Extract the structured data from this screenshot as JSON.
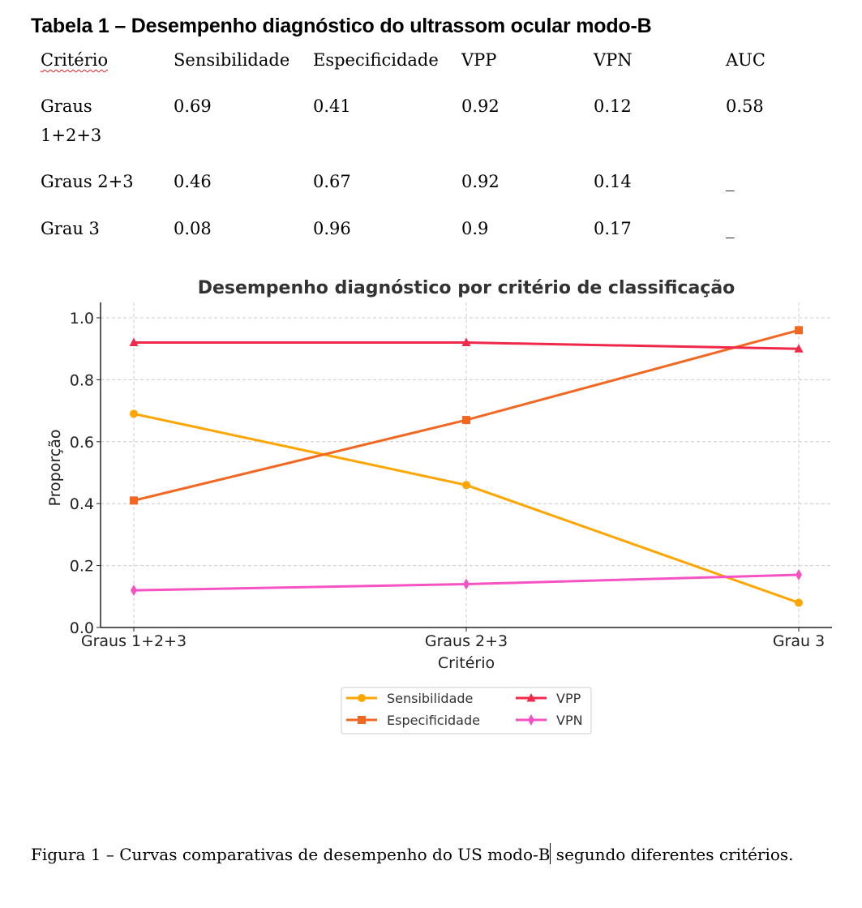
{
  "table": {
    "title": "Tabela 1 – Desempenho diagnóstico do ultrassom ocular modo-B",
    "headers": [
      "Critério",
      "Sensibilidade",
      "Especificidade",
      "VPP",
      "VPN",
      "AUC"
    ],
    "rows": [
      [
        "Graus 1+2+3",
        "0.69",
        "0.41",
        "0.92",
        "0.12",
        "0.58"
      ],
      [
        "Graus 2+3",
        "0.46",
        "0.67",
        "0.92",
        "0.14",
        "_"
      ],
      [
        "Grau 3",
        "0.08",
        "0.96",
        "0.9",
        "0.17",
        "_"
      ]
    ]
  },
  "chart_data": {
    "type": "line",
    "title": "Desempenho diagnóstico por critério de classificação",
    "xlabel": "Critério",
    "ylabel": "Proporção",
    "categories": [
      "Graus 1+2+3",
      "Graus 2+3",
      "Grau 3"
    ],
    "ylim": [
      0,
      1.05
    ],
    "yticks": [
      "0.0",
      "0.2",
      "0.4",
      "0.6",
      "0.8",
      "1.0"
    ],
    "grid": true,
    "legend_position": "bottom-center",
    "series": [
      {
        "name": "Sensibilidade",
        "values": [
          0.69,
          0.46,
          0.08
        ],
        "color": "#FFA500",
        "marker": "circle"
      },
      {
        "name": "Especificidade",
        "values": [
          0.41,
          0.67,
          0.96
        ],
        "color": "#F26722",
        "marker": "square"
      },
      {
        "name": "VPP",
        "values": [
          0.92,
          0.92,
          0.9
        ],
        "color": "#F0284A",
        "marker": "triangle"
      },
      {
        "name": "VPN",
        "values": [
          0.12,
          0.14,
          0.17
        ],
        "color": "#F553C4",
        "marker": "diamond"
      }
    ]
  },
  "caption": {
    "before_cursor": "Figura 1 – Curvas comparativas de desempenho do US modo-B",
    "after_cursor": " segundo diferentes critérios."
  }
}
